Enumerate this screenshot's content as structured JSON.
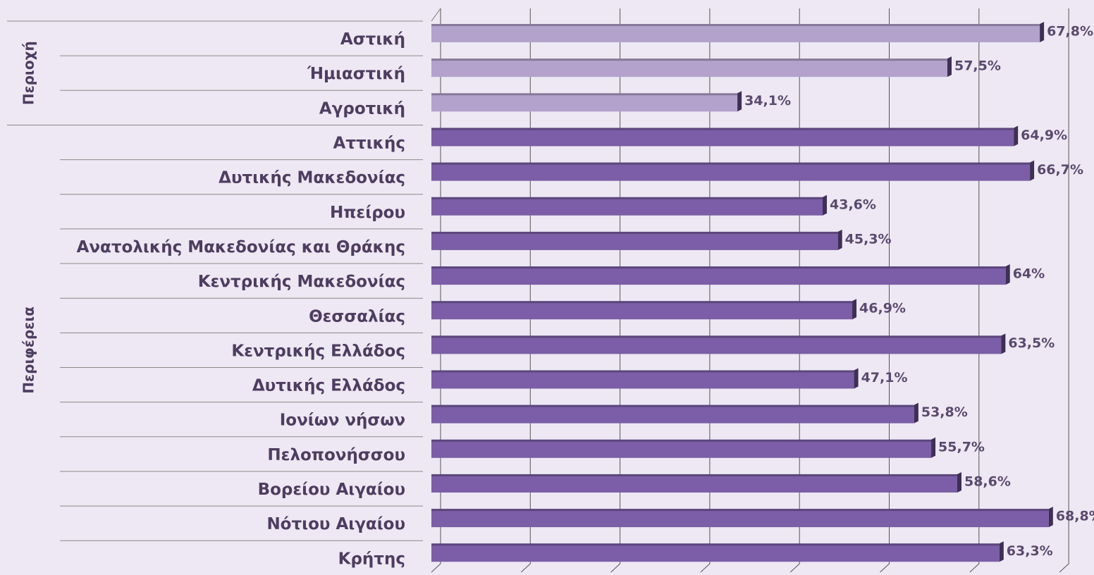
{
  "chart_data": {
    "type": "bar",
    "orientation": "horizontal",
    "xlim": [
      0,
      70
    ],
    "xticks": [
      0,
      10,
      20,
      30,
      40,
      50,
      60,
      70
    ],
    "grid": true,
    "series": [
      {
        "name": "Περιοχή",
        "color": "#b3a2cc",
        "categories": [
          "Αστική",
          "Ήμιαστική",
          "Αγροτική"
        ],
        "values": [
          67.8,
          57.5,
          34.1
        ],
        "value_labels": [
          "67,8%",
          "57,5%",
          "34,1%"
        ]
      },
      {
        "name": "Περιφέρεια",
        "color": "#7b5ea7",
        "categories": [
          "Αττικής",
          "Δυτικής Μακεδονίας",
          "Ηπείρου",
          "Ανατολικής Μακεδονίας και Θράκης",
          "Κεντρικής Μακεδονίας",
          "Θεσσαλίας",
          "Κεντρικής Ελλάδος",
          "Δυτικής Ελλάδος",
          "Ιονίων νήσων",
          "Πελοπονήσσου",
          "Βορείου Αιγαίου",
          "Νότιου Αιγαίου",
          "Κρήτης"
        ],
        "values": [
          64.9,
          66.7,
          43.6,
          45.3,
          64,
          46.9,
          63.5,
          47.1,
          53.8,
          55.7,
          58.6,
          68.8,
          63.3
        ],
        "value_labels": [
          "64,9%",
          "66,7%",
          "43,6%",
          "45,3%",
          "64%",
          "46,9%",
          "63,5%",
          "47,1%",
          "53,8%",
          "55,7%",
          "58,6%",
          "68,8%",
          "63,3%"
        ]
      }
    ]
  }
}
